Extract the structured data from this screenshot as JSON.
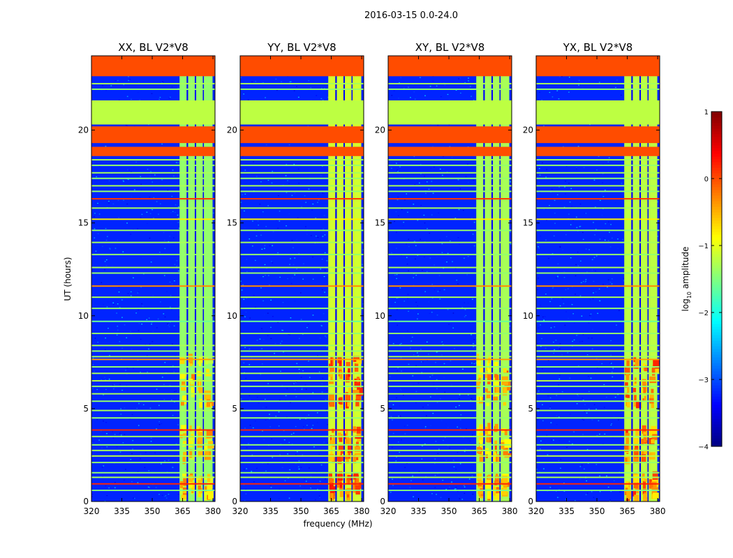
{
  "figure": {
    "suptitle": "2016-03-15 0.0-24.0",
    "ylabel": "UT (hours)",
    "xlabel": "frequency (MHz)"
  },
  "colorbar": {
    "label_prefix": "log",
    "label_sub": "10",
    "label_suffix": " amplitude",
    "range": [
      -4,
      1
    ],
    "ticks": [
      {
        "value": 1,
        "label": "1"
      },
      {
        "value": 0,
        "label": "0"
      },
      {
        "value": -1,
        "label": "−1"
      },
      {
        "value": -2,
        "label": "−2"
      },
      {
        "value": -3,
        "label": "−3"
      },
      {
        "value": -4,
        "label": "−4"
      }
    ]
  },
  "chart_data": {
    "type": "heatmap",
    "title": "2016-03-15 0.0-24.0",
    "xlabel": "frequency (MHz)",
    "ylabel": "UT (hours)",
    "xlim": [
      320,
      381
    ],
    "ylim": [
      0,
      24
    ],
    "x_ticks": [
      {
        "value": 320,
        "label": "320"
      },
      {
        "value": 335,
        "label": "335"
      },
      {
        "value": 350,
        "label": "350"
      },
      {
        "value": 365,
        "label": "365"
      },
      {
        "value": 380,
        "label": "380"
      }
    ],
    "y_ticks": [
      {
        "value": 0,
        "label": "0"
      },
      {
        "value": 5,
        "label": "5"
      },
      {
        "value": 10,
        "label": "10"
      },
      {
        "value": 15,
        "label": "15"
      },
      {
        "value": 20,
        "label": "20"
      }
    ],
    "colorscale": "jet",
    "value_range": [
      -4,
      1
    ],
    "background_level": -3.2,
    "panels": [
      {
        "title": "XX, BL V2*V8",
        "pol": "XX",
        "rfi_level": -1.4,
        "bright_level": -0.2
      },
      {
        "title": "YY, BL V2*V8",
        "pol": "YY",
        "rfi_level": -1.1,
        "bright_level": 0.3
      },
      {
        "title": "XY, BL V2*V8",
        "pol": "XY",
        "rfi_level": -1.3,
        "bright_level": 0.0
      },
      {
        "title": "YX, BL V2*V8",
        "pol": "YX",
        "rfi_level": -1.2,
        "bright_level": 0.2
      }
    ],
    "flagged_time_bands": [
      {
        "start": 22.9,
        "end": 24.0,
        "level": 0.0
      },
      {
        "start": 20.3,
        "end": 21.6,
        "level": -1.2
      },
      {
        "start": 19.3,
        "end": 20.2,
        "level": 0.0
      },
      {
        "start": 18.6,
        "end": 19.1,
        "level": 0.0
      }
    ],
    "rfi_frequency_bands": [
      [
        363.5,
        367.0
      ],
      [
        367.7,
        371.0
      ],
      [
        371.7,
        375.0
      ],
      [
        375.5,
        379.8
      ]
    ],
    "bright_time_ranges": [
      [
        0.0,
        1.2
      ],
      [
        2.0,
        3.8
      ],
      [
        5.0,
        7.6
      ]
    ],
    "horizontal_lines": [
      {
        "t": 0.6,
        "level": -1.5
      },
      {
        "t": 0.95,
        "level": 0.2
      },
      {
        "t": 1.3,
        "level": -1.3
      },
      {
        "t": 1.55,
        "level": -1.4
      },
      {
        "t": 2.1,
        "level": -1.4
      },
      {
        "t": 2.45,
        "level": -1.2
      },
      {
        "t": 2.75,
        "level": -1.3
      },
      {
        "t": 3.05,
        "level": -1.4
      },
      {
        "t": 3.5,
        "level": -1.3
      },
      {
        "t": 3.85,
        "level": 0.2
      },
      {
        "t": 4.5,
        "level": -1.4
      },
      {
        "t": 4.9,
        "level": -1.3
      },
      {
        "t": 5.4,
        "level": -1.4
      },
      {
        "t": 5.8,
        "level": -1.3
      },
      {
        "t": 6.2,
        "level": -1.4
      },
      {
        "t": 6.5,
        "level": -1.2
      },
      {
        "t": 6.9,
        "level": -1.3
      },
      {
        "t": 7.25,
        "level": -1.4
      },
      {
        "t": 7.65,
        "level": -0.4
      },
      {
        "t": 7.8,
        "level": -1.3
      },
      {
        "t": 8.1,
        "level": -1.4
      },
      {
        "t": 8.4,
        "level": -1.3
      },
      {
        "t": 9.05,
        "level": -1.4
      },
      {
        "t": 9.7,
        "level": -1.6
      },
      {
        "t": 10.4,
        "level": -1.4
      },
      {
        "t": 11.0,
        "level": -1.3
      },
      {
        "t": 11.6,
        "level": -0.3
      },
      {
        "t": 12.3,
        "level": -1.4
      },
      {
        "t": 12.6,
        "level": -1.3
      },
      {
        "t": 13.3,
        "level": -1.4
      },
      {
        "t": 13.95,
        "level": -1.3
      },
      {
        "t": 14.6,
        "level": -1.4
      },
      {
        "t": 15.2,
        "level": -0.8
      },
      {
        "t": 15.8,
        "level": -1.3
      },
      {
        "t": 16.3,
        "level": 0.1
      },
      {
        "t": 16.7,
        "level": -1.4
      },
      {
        "t": 17.0,
        "level": -1.3
      },
      {
        "t": 17.4,
        "level": -1.4
      },
      {
        "t": 17.7,
        "level": -1.3
      },
      {
        "t": 18.1,
        "level": -1.4
      },
      {
        "t": 18.4,
        "level": -1.3
      },
      {
        "t": 22.2,
        "level": -1.4
      },
      {
        "t": 22.5,
        "level": -1.3
      },
      {
        "t": 23.2,
        "level": -1.4
      }
    ]
  }
}
